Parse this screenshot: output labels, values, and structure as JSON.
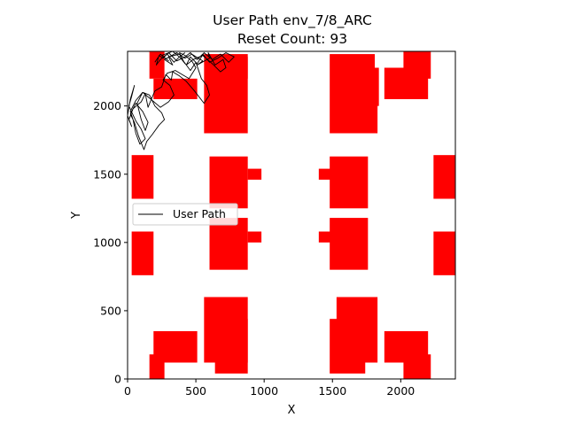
{
  "chart_data": {
    "type": "line",
    "title": "User Path env_7/8_ARC",
    "subtitle": "Reset Count: 93",
    "xlabel": "X",
    "ylabel": "Y",
    "xlim": [
      0,
      2400
    ],
    "ylim": [
      0,
      2400
    ],
    "xticks": [
      0,
      500,
      1000,
      1500,
      2000
    ],
    "yticks": [
      0,
      500,
      1000,
      1500,
      2000
    ],
    "grid": false,
    "legend": {
      "position": "center-left",
      "entries": [
        "User Path"
      ]
    },
    "colors": {
      "obstacle": "#ff0000",
      "path": "#000000"
    },
    "obstacles": [
      [
        160,
        2200,
        110,
        200
      ],
      [
        190,
        2050,
        320,
        150
      ],
      [
        560,
        1800,
        320,
        580
      ],
      [
        640,
        2200,
        240,
        160
      ],
      [
        1480,
        1800,
        330,
        580
      ],
      [
        1530,
        1800,
        300,
        480
      ],
      [
        1680,
        2000,
        160,
        280
      ],
      [
        1880,
        2050,
        320,
        230
      ],
      [
        2020,
        2200,
        200,
        200
      ],
      [
        30,
        1320,
        160,
        320
      ],
      [
        600,
        1250,
        280,
        380
      ],
      [
        880,
        1460,
        100,
        80
      ],
      [
        1400,
        1460,
        100,
        80
      ],
      [
        1480,
        1250,
        280,
        380
      ],
      [
        2240,
        1320,
        160,
        320
      ],
      [
        30,
        760,
        160,
        320
      ],
      [
        600,
        800,
        280,
        380
      ],
      [
        880,
        1000,
        100,
        80
      ],
      [
        1400,
        1000,
        100,
        80
      ],
      [
        1480,
        800,
        280,
        380
      ],
      [
        2240,
        760,
        160,
        320
      ],
      [
        560,
        120,
        320,
        480
      ],
      [
        160,
        0,
        110,
        180
      ],
      [
        190,
        120,
        320,
        230
      ],
      [
        640,
        40,
        240,
        400
      ],
      [
        1480,
        40,
        260,
        400
      ],
      [
        1530,
        120,
        300,
        480
      ],
      [
        1880,
        120,
        320,
        230
      ],
      [
        2020,
        0,
        200,
        180
      ]
    ],
    "series": [
      {
        "name": "User Path",
        "x": [
          200,
          240,
          300,
          250,
          330,
          390,
          420,
          380,
          300,
          330,
          270,
          360,
          420,
          470,
          550,
          510,
          600,
          590,
          640,
          700,
          720,
          680,
          620,
          550,
          480,
          430,
          460,
          500,
          540,
          580,
          600,
          560,
          490,
          430,
          380,
          330,
          320,
          280,
          250,
          200,
          170,
          150,
          130,
          100,
          40,
          10,
          30,
          0,
          20,
          50,
          30,
          10,
          60,
          100,
          130,
          90,
          60,
          40,
          20,
          60,
          110,
          160,
          200,
          250,
          270,
          230,
          180,
          140,
          120,
          80,
          50,
          20,
          60,
          110,
          150,
          130,
          100,
          70,
          110,
          170,
          240,
          300,
          340,
          310,
          260,
          290,
          350,
          400,
          450,
          500,
          470,
          420,
          380,
          400,
          430,
          460,
          510,
          560,
          620,
          680,
          740,
          780,
          720,
          660,
          600,
          550,
          510,
          460,
          420,
          360,
          300,
          260,
          230,
          210,
          240,
          290,
          340,
          380,
          420
        ],
        "y": [
          2320,
          2380,
          2330,
          2370,
          2400,
          2350,
          2310,
          2380,
          2360,
          2300,
          2340,
          2390,
          2350,
          2380,
          2330,
          2300,
          2350,
          2390,
          2300,
          2340,
          2280,
          2250,
          2310,
          2370,
          2340,
          2300,
          2260,
          2320,
          2200,
          2150,
          2080,
          2020,
          2110,
          2180,
          2220,
          2250,
          2190,
          2230,
          2140,
          2110,
          2040,
          1990,
          2090,
          2030,
          1980,
          1900,
          1850,
          1930,
          2050,
          2150,
          2070,
          2000,
          1890,
          1830,
          1760,
          1720,
          1800,
          1900,
          1960,
          2040,
          2100,
          2080,
          2000,
          1950,
          1900,
          1860,
          1790,
          1740,
          1680,
          1780,
          1880,
          1940,
          2020,
          1960,
          1880,
          1820,
          1900,
          2020,
          2100,
          2050,
          1990,
          2030,
          2080,
          2150,
          2190,
          2240,
          2260,
          2230,
          2200,
          2280,
          2330,
          2370,
          2390,
          2340,
          2300,
          2360,
          2310,
          2390,
          2340,
          2380,
          2320,
          2360,
          2390,
          2350,
          2320,
          2380,
          2340,
          2390,
          2360,
          2330,
          2390,
          2350,
          2370,
          2300,
          2340,
          2380,
          2320,
          2360,
          2390
        ]
      }
    ]
  }
}
